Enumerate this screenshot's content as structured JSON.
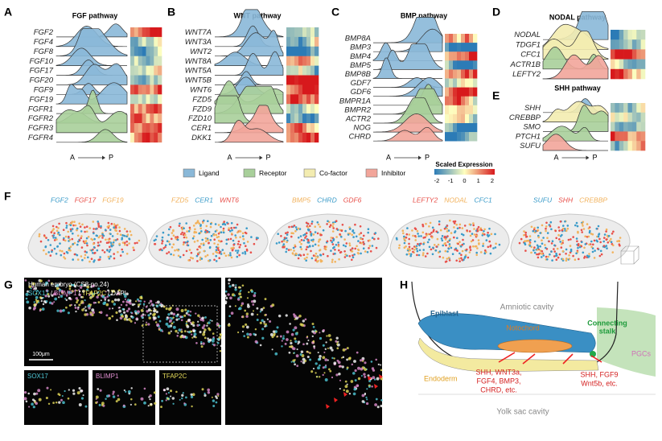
{
  "panels": [
    {
      "label": "A",
      "title": "FGF pathway",
      "axis_start": "A",
      "axis_end": "P",
      "genes": [
        {
          "name": "FGF2",
          "color": "#8ab8d8"
        },
        {
          "name": "FGF4",
          "color": "#8ab8d8"
        },
        {
          "name": "FGF8",
          "color": "#8ab8d8"
        },
        {
          "name": "FGF10",
          "color": "#8ab8d8"
        },
        {
          "name": "FGF17",
          "color": "#8ab8d8"
        },
        {
          "name": "FGF20",
          "color": "#8ab8d8"
        },
        {
          "name": "FGF9",
          "color": "#8ab8d8"
        },
        {
          "name": "FGF19",
          "color": "#8ab8d8"
        },
        {
          "name": "FGFR1",
          "color": "#a8cf9a"
        },
        {
          "name": "FGFR2",
          "color": "#a8cf9a"
        },
        {
          "name": "FGFR3",
          "color": "#a8cf9a"
        },
        {
          "name": "FGFR4",
          "color": "#a8cf9a"
        }
      ]
    },
    {
      "label": "B",
      "title": "WNT pathway",
      "axis_start": "A",
      "axis_end": "P",
      "genes": [
        {
          "name": "WNT7A",
          "color": "#8ab8d8"
        },
        {
          "name": "WNT3A",
          "color": "#8ab8d8"
        },
        {
          "name": "WNT2",
          "color": "#8ab8d8"
        },
        {
          "name": "WNT8A",
          "color": "#8ab8d8"
        },
        {
          "name": "WNT5A",
          "color": "#8ab8d8"
        },
        {
          "name": "WNT5B",
          "color": "#8ab8d8"
        },
        {
          "name": "WNT6",
          "color": "#8ab8d8"
        },
        {
          "name": "FZD5",
          "color": "#a8cf9a"
        },
        {
          "name": "FZD9",
          "color": "#a8cf9a"
        },
        {
          "name": "FZD10",
          "color": "#a8cf9a"
        },
        {
          "name": "CER1",
          "color": "#f2a59a"
        },
        {
          "name": "DKK1",
          "color": "#f2a59a"
        }
      ]
    },
    {
      "label": "C",
      "title": "BMP pathway",
      "axis_start": "A",
      "axis_end": "P",
      "genes": [
        {
          "name": "BMP8A",
          "color": "#8ab8d8"
        },
        {
          "name": "BMP3",
          "color": "#8ab8d8"
        },
        {
          "name": "BMP4",
          "color": "#8ab8d8"
        },
        {
          "name": "BMP5",
          "color": "#8ab8d8"
        },
        {
          "name": "BMP8B",
          "color": "#8ab8d8"
        },
        {
          "name": "GDF7",
          "color": "#8ab8d8"
        },
        {
          "name": "GDF6",
          "color": "#8ab8d8"
        },
        {
          "name": "BMPR1A",
          "color": "#a8cf9a"
        },
        {
          "name": "BMPR2",
          "color": "#a8cf9a"
        },
        {
          "name": "ACTR2",
          "color": "#a8cf9a"
        },
        {
          "name": "NOG",
          "color": "#f2a59a"
        },
        {
          "name": "CHRD",
          "color": "#f2a59a"
        }
      ]
    },
    {
      "label": "D",
      "title": "NODAL pathway",
      "genes": [
        {
          "name": "NODAL",
          "color": "#8ab8d8"
        },
        {
          "name": "TDGF1",
          "color": "#f3ecb0"
        },
        {
          "name": "CFC1",
          "color": "#f3ecb0"
        },
        {
          "name": "ACTR1B",
          "color": "#a8cf9a"
        },
        {
          "name": "LEFTY2",
          "color": "#f2a59a"
        }
      ]
    },
    {
      "label": "E",
      "title": "SHH pathway",
      "axis_start": "A",
      "axis_end": "P",
      "genes": [
        {
          "name": "SHH",
          "color": "#8ab8d8"
        },
        {
          "name": "CREBBP",
          "color": "#f3ecb0"
        },
        {
          "name": "SMO",
          "color": "#a8cf9a"
        },
        {
          "name": "PTCH1",
          "color": "#a8cf9a"
        },
        {
          "name": "SUFU",
          "color": "#f2a59a"
        }
      ]
    }
  ],
  "legend": {
    "items": [
      {
        "label": "Ligand",
        "color": "#8ab8d8"
      },
      {
        "label": "Receptor",
        "color": "#a8cf9a"
      },
      {
        "label": "Co-factor",
        "color": "#f3ecb0"
      },
      {
        "label": "Inhibitor",
        "color": "#f2a59a"
      }
    ],
    "scale_title": "Scaled Expression",
    "scale_ticks": [
      -2,
      -1,
      0,
      1,
      2
    ]
  },
  "panel_f": {
    "label": "F",
    "plots": [
      {
        "genes": [
          {
            "name": "FGF2",
            "color": "#3a9bc9"
          },
          {
            "name": "FGF17",
            "color": "#e8504a"
          },
          {
            "name": "FGF19",
            "color": "#f2b25c"
          }
        ]
      },
      {
        "genes": [
          {
            "name": "FZD5",
            "color": "#f2b25c"
          },
          {
            "name": "CER1",
            "color": "#3a9bc9"
          },
          {
            "name": "WNT6",
            "color": "#e8504a"
          }
        ]
      },
      {
        "genes": [
          {
            "name": "BMP5",
            "color": "#f2b25c"
          },
          {
            "name": "CHRD",
            "color": "#3a9bc9"
          },
          {
            "name": "GDF6",
            "color": "#e8504a"
          }
        ]
      },
      {
        "genes": [
          {
            "name": "LEFTY2",
            "color": "#e8504a"
          },
          {
            "name": "NODAL",
            "color": "#f2b25c"
          },
          {
            "name": "CFC1",
            "color": "#3a9bc9"
          }
        ]
      },
      {
        "genes": [
          {
            "name": "SUFU",
            "color": "#3a9bc9"
          },
          {
            "name": "SHH",
            "color": "#e8504a"
          },
          {
            "name": "CREBBP",
            "color": "#f2b25c"
          }
        ]
      }
    ]
  },
  "panel_g": {
    "label": "G",
    "caption": "Human embryo (CS8-no.24)",
    "separator": "/",
    "stains": [
      {
        "name": "SOX17",
        "color": "#4fc9d8"
      },
      {
        "name": "BLIMP1",
        "color": "#e08fd0"
      },
      {
        "name": "TFAP2C",
        "color": "#e6dc5a"
      },
      {
        "name": "DAPI",
        "color": "#ffffff"
      }
    ],
    "scale_bar": "100μm"
  },
  "panel_h": {
    "label": "H",
    "amniotic": "Amniotic cavity",
    "epiblast": "Epiblast",
    "notochord": "Notochord",
    "stalk": [
      "Connecting",
      "stalk"
    ],
    "pgcs": "PGCs",
    "endoderm": "Endoderm",
    "signals_left": [
      "SHH, WNT3a,",
      "FGF4, BMP3,",
      "CHRD, etc."
    ],
    "signals_right": [
      "SHH, FGF9",
      "Wnt5b, etc."
    ],
    "yolk": "Yolk sac cavity"
  }
}
